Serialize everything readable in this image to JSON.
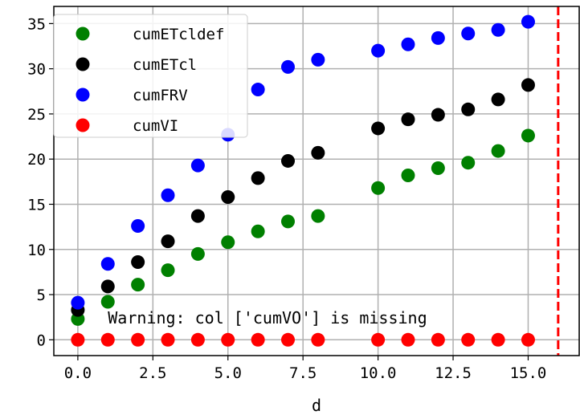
{
  "chart_data": {
    "type": "scatter",
    "xlabel": "d",
    "ylabel": "",
    "xlim": [
      -0.8,
      16.7
    ],
    "ylim": [
      -1.75,
      36.9
    ],
    "xticks": [
      0.0,
      2.5,
      5.0,
      7.5,
      10.0,
      12.5,
      15.0
    ],
    "xtick_labels": [
      "0.0",
      "2.5",
      "5.0",
      "7.5",
      "10.0",
      "12.5",
      "15.0"
    ],
    "yticks": [
      0,
      5,
      10,
      15,
      20,
      25,
      30,
      35
    ],
    "ytick_labels": [
      "0",
      "5",
      "10",
      "15",
      "20",
      "25",
      "30",
      "35"
    ],
    "grid": true,
    "legend_position": "top-left",
    "annotation": "Warning: col ['cumVO'] is missing",
    "annotation_at": {
      "x": 1.0,
      "y": 2.5
    },
    "vline": {
      "x": 16.0,
      "color": "#ff0000",
      "style": "dashed"
    },
    "x": [
      0,
      1,
      2,
      3,
      4,
      5,
      6,
      7,
      8,
      10,
      11,
      12,
      13,
      14,
      15
    ],
    "series": [
      {
        "name": "cumETcldef",
        "color": "#008000",
        "values": [
          2.3,
          4.2,
          6.1,
          7.7,
          9.5,
          10.8,
          12.0,
          13.1,
          13.7,
          16.8,
          18.2,
          19.0,
          19.6,
          20.9,
          22.6
        ]
      },
      {
        "name": "cumETcl",
        "color": "#000000",
        "values": [
          3.3,
          5.9,
          8.6,
          10.9,
          13.7,
          15.8,
          17.9,
          19.8,
          20.7,
          23.4,
          24.4,
          24.9,
          25.5,
          26.6,
          28.2
        ]
      },
      {
        "name": "cumFRV",
        "color": "#0000ff",
        "values": [
          4.1,
          8.4,
          12.6,
          16.0,
          19.3,
          22.7,
          27.7,
          30.2,
          31.0,
          32.0,
          32.7,
          33.4,
          33.9,
          34.3,
          35.2
        ]
      },
      {
        "name": "cumVI",
        "color": "#ff0000",
        "values": [
          0,
          0,
          0,
          0,
          0,
          0,
          0,
          0,
          0,
          0,
          0,
          0,
          0,
          0,
          0
        ]
      }
    ]
  }
}
